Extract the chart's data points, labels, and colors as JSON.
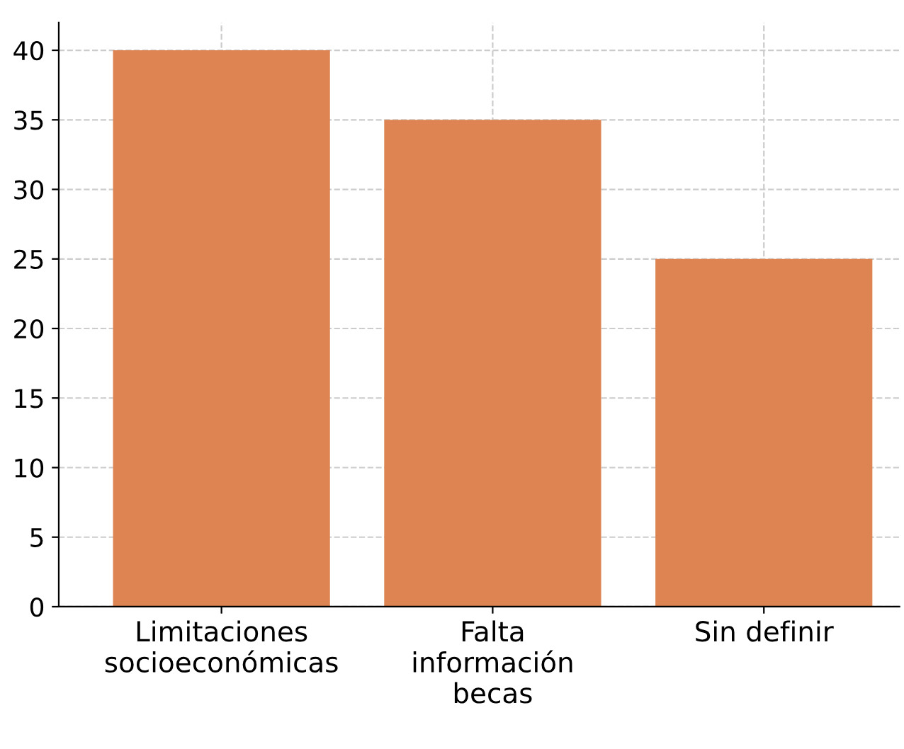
{
  "chart_data": {
    "type": "bar",
    "categories": [
      "Limitaciones\nsocioeconómicas",
      "Falta\ninformación\nbecas",
      "Sin definir"
    ],
    "values": [
      40,
      35,
      25
    ],
    "color": "#dd8452",
    "ylim": [
      0,
      42
    ],
    "yticks": [
      0,
      5,
      10,
      15,
      20,
      25,
      30,
      35,
      40
    ],
    "grid": true
  }
}
